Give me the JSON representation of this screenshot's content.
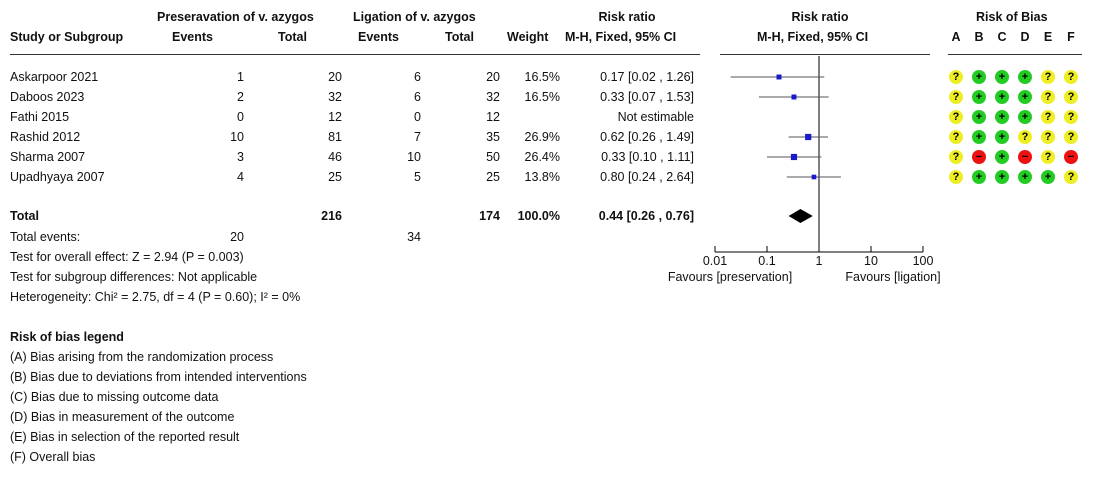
{
  "headers": {
    "study": "Study or Subgroup",
    "group1": "Preseravation of v. azygos",
    "group2": "Ligation of v. azygos",
    "events": "Events",
    "total": "Total",
    "weight": "Weight",
    "rr_title": "Risk ratio",
    "rr_method": "M-H, Fixed, 95% CI",
    "plot_title": "Risk ratio",
    "plot_method": "M-H, Fixed, 95% CI",
    "rob_title": "Risk of Bias",
    "rob_letters": [
      "A",
      "B",
      "C",
      "D",
      "E",
      "F"
    ]
  },
  "studies": [
    {
      "name": "Askarpoor 2021",
      "e1": "1",
      "t1": "20",
      "e2": "6",
      "t2": "20",
      "weight": "16.5%",
      "rr": "0.17 [0.02 , 1.26]",
      "rob": [
        "?",
        "+",
        "+",
        "+",
        "?",
        "?"
      ]
    },
    {
      "name": "Daboos 2023",
      "e1": "2",
      "t1": "32",
      "e2": "6",
      "t2": "32",
      "weight": "16.5%",
      "rr": "0.33 [0.07 , 1.53]",
      "rob": [
        "?",
        "+",
        "+",
        "+",
        "?",
        "?"
      ]
    },
    {
      "name": "Fathi 2015",
      "e1": "0",
      "t1": "12",
      "e2": "0",
      "t2": "12",
      "weight": "",
      "rr": "Not estimable",
      "rob": [
        "?",
        "+",
        "+",
        "+",
        "?",
        "?"
      ]
    },
    {
      "name": "Rashid 2012",
      "e1": "10",
      "t1": "81",
      "e2": "7",
      "t2": "35",
      "weight": "26.9%",
      "rr": "0.62 [0.26 , 1.49]",
      "rob": [
        "?",
        "+",
        "+",
        "?",
        "?",
        "?"
      ]
    },
    {
      "name": "Sharma 2007",
      "e1": "3",
      "t1": "46",
      "e2": "10",
      "t2": "50",
      "weight": "26.4%",
      "rr": "0.33 [0.10 , 1.11]",
      "rob": [
        "?",
        "-",
        "+",
        "-",
        "?",
        "-"
      ]
    },
    {
      "name": "Upadhyaya 2007",
      "e1": "4",
      "t1": "25",
      "e2": "5",
      "t2": "25",
      "weight": "13.8%",
      "rr": "0.80 [0.24 , 2.64]",
      "rob": [
        "?",
        "+",
        "+",
        "+",
        "+",
        "?"
      ]
    }
  ],
  "total": {
    "label": "Total",
    "t1": "216",
    "t2": "174",
    "weight": "100.0%",
    "rr": "0.44 [0.26 , 0.76]"
  },
  "total_events": {
    "label": "Total events:",
    "e1": "20",
    "e2": "34"
  },
  "stats": [
    "Test for overall effect: Z = 2.94 (P = 0.003)",
    "Test for subgroup differences: Not applicable",
    "Heterogeneity: Chi² = 2.75, df = 4 (P = 0.60); I² = 0%"
  ],
  "legend": {
    "title": "Risk of bias legend",
    "items": [
      "(A) Bias arising from the randomization process",
      "(B) Bias due to deviations from intended interventions",
      "(C) Bias due to missing outcome data",
      "(D) Bias in measurement of the outcome",
      "(E) Bias in selection of the reported result",
      "(F) Overall bias"
    ]
  },
  "colors": {
    "low_risk": "#22cc22",
    "unclear_risk": "#eeee22",
    "high_risk": "#ee1111",
    "point": "#1a1acc",
    "diamond": "#000000"
  },
  "chart_data": {
    "type": "scatter",
    "scale": "log",
    "x_ticks": [
      "0.01",
      "0.1",
      "1",
      "10",
      "100"
    ],
    "xlim": [
      0.01,
      100
    ],
    "favours_left": "Favours [preservation]",
    "favours_right": "Favours [ligation]",
    "series": [
      {
        "study": "Askarpoor 2021",
        "rr": 0.17,
        "lo": 0.02,
        "hi": 1.26,
        "weight": 16.5
      },
      {
        "study": "Daboos 2023",
        "rr": 0.33,
        "lo": 0.07,
        "hi": 1.53,
        "weight": 16.5
      },
      {
        "study": "Fathi 2015",
        "rr": null,
        "lo": null,
        "hi": null,
        "weight": 0
      },
      {
        "study": "Rashid 2012",
        "rr": 0.62,
        "lo": 0.26,
        "hi": 1.49,
        "weight": 26.9
      },
      {
        "study": "Sharma 2007",
        "rr": 0.33,
        "lo": 0.1,
        "hi": 1.11,
        "weight": 26.4
      },
      {
        "study": "Upadhyaya 2007",
        "rr": 0.8,
        "lo": 0.24,
        "hi": 2.64,
        "weight": 13.8
      }
    ],
    "pooled": {
      "rr": 0.44,
      "lo": 0.26,
      "hi": 0.76
    }
  }
}
